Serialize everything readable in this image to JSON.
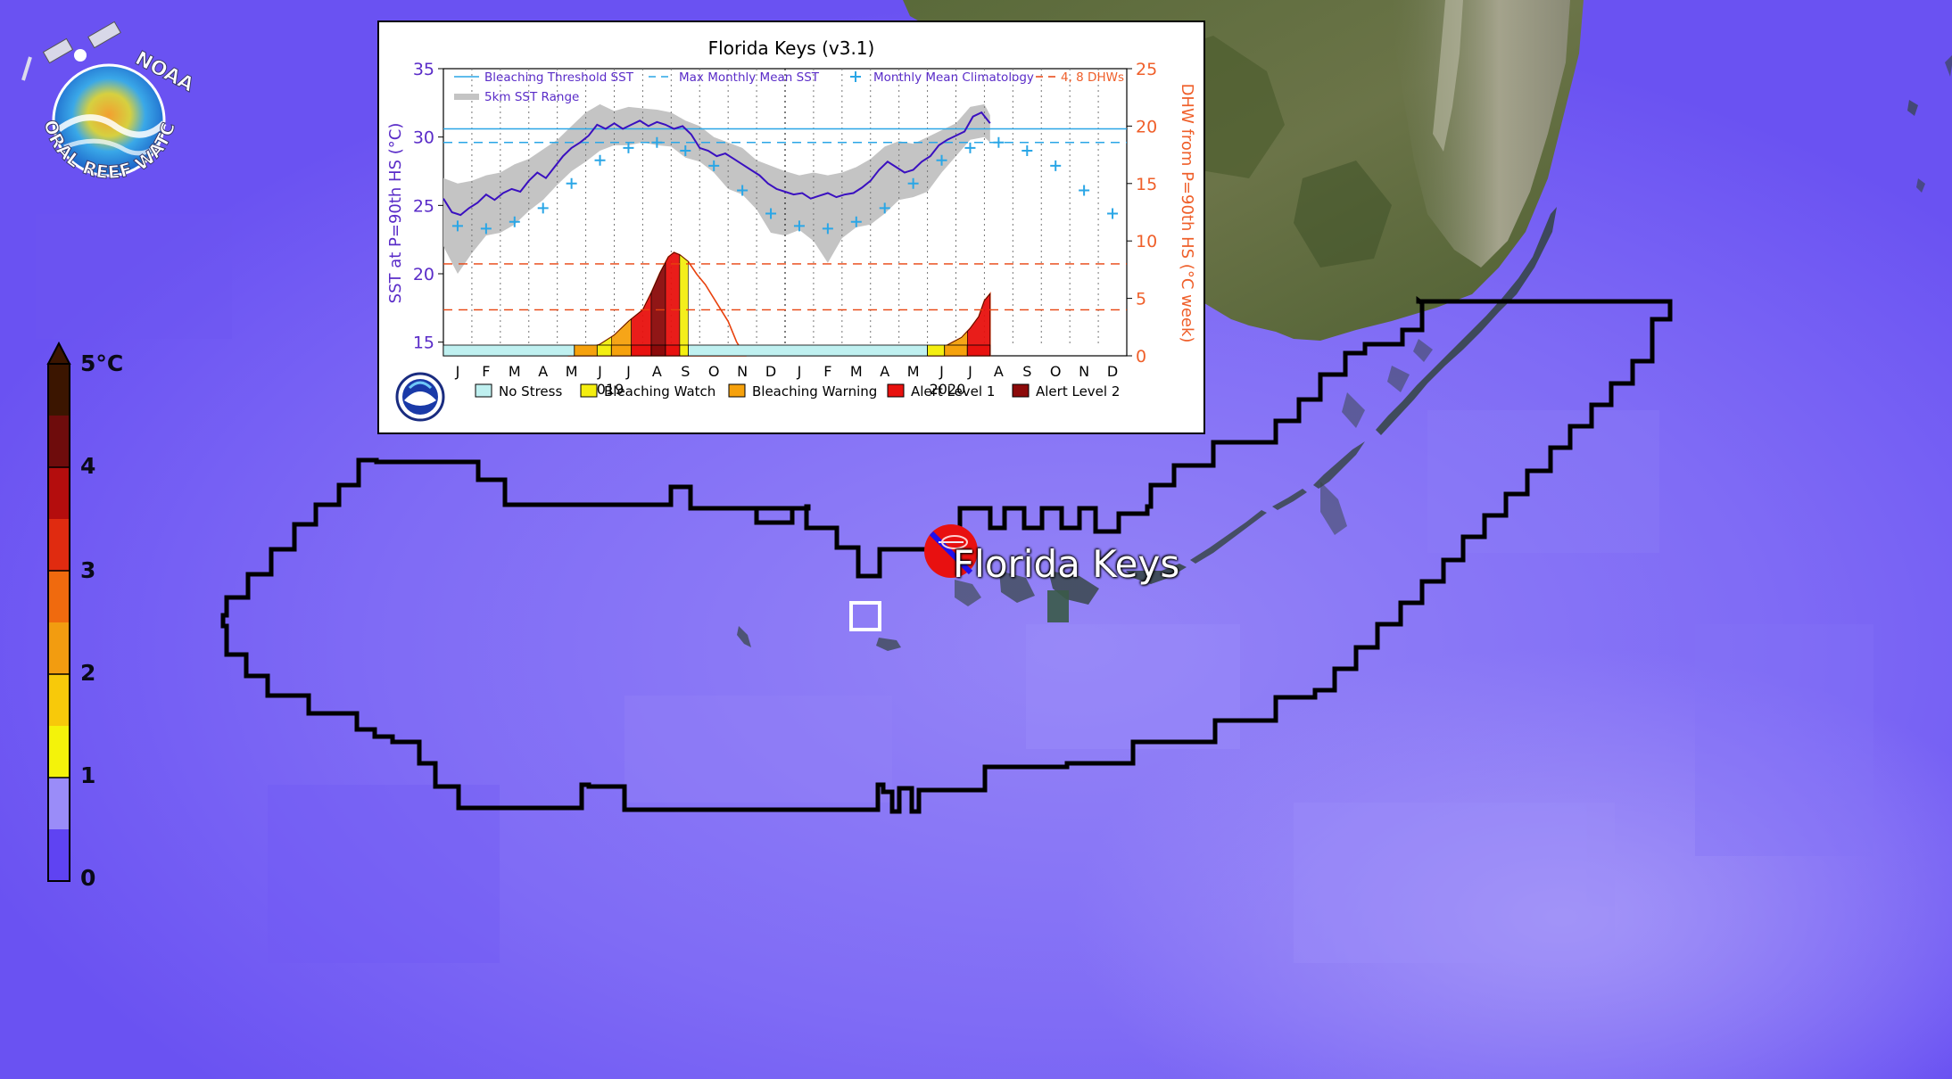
{
  "site": {
    "name": "Florida Keys"
  },
  "logo": {
    "top_text": "NOAA",
    "bottom_text": "CORAL REEF WATCH",
    "icon": "noaa-coral-reef-watch-logo-icon"
  },
  "colorbar": {
    "unit_label": "5°C",
    "ticks": [
      "4",
      "3",
      "2",
      "1",
      "0"
    ],
    "colors": [
      "#3b1500",
      "#6e0c0c",
      "#b40d0d",
      "#e02b10",
      "#f06a0e",
      "#f29c10",
      "#f7c90a",
      "#f4f30a",
      "#9a8cf8",
      "#5f43f2"
    ]
  },
  "map": {
    "ocean_color": "#7c68f5",
    "land_icon": "satellite-land-icon",
    "marker_icon": "station-marker-icon"
  },
  "chart_data": {
    "type": "line",
    "title": "Florida Keys (v3.1)",
    "ylabel": "SST at P=90th HS (°C)",
    "y2label": "DHW from P=90th HS (°C week)",
    "ylim": [
      14,
      35
    ],
    "y2lim": [
      0,
      25
    ],
    "yticks": [
      "35",
      "30",
      "25",
      "20",
      "15"
    ],
    "y2ticks": [
      "25",
      "20",
      "15",
      "10",
      "5",
      "0"
    ],
    "months": [
      "J",
      "F",
      "M",
      "A",
      "M",
      "J",
      "J",
      "A",
      "S",
      "O",
      "N",
      "D",
      "J",
      "F",
      "M",
      "A",
      "M",
      "J",
      "J",
      "A",
      "S",
      "O",
      "N",
      "D"
    ],
    "years": [
      "2019",
      "2020"
    ],
    "legend": {
      "line1": [
        "Bleaching Threshold SST",
        "Max Monthly Mean SST",
        "Monthly Mean Climatology",
        "4, 8 DHWs"
      ],
      "line2": [
        "5km SST Range"
      ]
    },
    "bleaching_threshold_sst": 30.6,
    "max_monthly_mean_sst": 29.6,
    "dhw_levels": [
      4,
      8
    ],
    "monthly_mean_climatology": {
      "x": [
        0.5,
        1.5,
        2.5,
        3.5,
        4.5,
        5.5,
        6.5,
        7.5,
        8.5,
        9.5,
        10.5,
        11.5,
        12.5,
        13.5,
        14.5,
        15.5,
        16.5,
        17.5,
        18.5,
        19.5,
        20.5,
        21.5,
        22.5,
        23.5
      ],
      "y": [
        23.5,
        23.3,
        23.8,
        24.8,
        26.6,
        28.3,
        29.2,
        29.6,
        29.0,
        27.9,
        26.1,
        24.4,
        23.5,
        23.3,
        23.8,
        24.8,
        26.6,
        28.3,
        29.2,
        29.6,
        29.0,
        27.9,
        26.1,
        24.4
      ]
    },
    "sst": {
      "x": [
        0.0,
        0.3,
        0.6,
        0.9,
        1.2,
        1.5,
        1.8,
        2.1,
        2.4,
        2.7,
        3.0,
        3.3,
        3.6,
        3.9,
        4.2,
        4.5,
        4.8,
        5.1,
        5.4,
        5.7,
        6.0,
        6.3,
        6.6,
        6.9,
        7.2,
        7.5,
        7.8,
        8.1,
        8.4,
        8.7,
        9.0,
        9.3,
        9.6,
        9.9,
        10.2,
        10.5,
        10.8,
        11.1,
        11.4,
        11.7,
        12.0,
        12.3,
        12.6,
        12.9,
        13.2,
        13.5,
        13.8,
        14.1,
        14.4,
        14.7,
        15.0,
        15.3,
        15.6,
        15.9,
        16.2,
        16.5,
        16.8,
        17.1,
        17.4,
        17.7,
        18.0,
        18.3,
        18.6,
        18.9,
        19.2
      ],
      "y": [
        25.5,
        24.5,
        24.3,
        24.8,
        25.2,
        25.8,
        25.4,
        25.9,
        26.2,
        26.0,
        26.8,
        27.4,
        27.0,
        27.8,
        28.6,
        29.2,
        29.6,
        30.1,
        30.9,
        30.6,
        31.0,
        30.6,
        30.9,
        31.2,
        30.8,
        31.1,
        30.9,
        30.6,
        30.8,
        30.2,
        29.2,
        29.0,
        28.6,
        28.8,
        28.4,
        28.0,
        27.6,
        27.2,
        26.6,
        26.2,
        26.0,
        25.8,
        25.9,
        25.5,
        25.7,
        25.9,
        25.6,
        25.8,
        25.9,
        26.3,
        26.8,
        27.6,
        28.2,
        27.8,
        27.4,
        27.6,
        28.2,
        28.6,
        29.4,
        29.8,
        30.1,
        30.4,
        31.5,
        31.8,
        31.0
      ]
    },
    "sst_range": {
      "x": [
        0.0,
        0.5,
        1.0,
        1.5,
        2.0,
        2.5,
        3.0,
        3.5,
        4.0,
        4.5,
        5.0,
        5.5,
        6.0,
        6.5,
        7.0,
        7.5,
        8.0,
        8.5,
        9.0,
        9.5,
        10.0,
        10.5,
        11.0,
        11.5,
        12.0,
        12.5,
        13.0,
        13.5,
        14.0,
        14.5,
        15.0,
        15.5,
        16.0,
        16.5,
        17.0,
        17.5,
        18.0,
        18.5,
        19.0,
        19.2
      ],
      "low": [
        22.0,
        20.0,
        21.5,
        22.8,
        23.0,
        23.6,
        24.6,
        25.4,
        26.5,
        27.5,
        28.2,
        29.0,
        29.4,
        29.4,
        29.6,
        29.4,
        29.3,
        28.5,
        28.2,
        27.4,
        26.2,
        25.8,
        24.7,
        23.0,
        22.8,
        23.2,
        22.4,
        20.8,
        22.6,
        23.4,
        23.6,
        24.4,
        25.4,
        25.6,
        26.0,
        27.4,
        28.6,
        29.8,
        30.0,
        29.6
      ],
      "high": [
        27.0,
        26.6,
        26.8,
        27.2,
        27.4,
        28.0,
        28.4,
        29.1,
        29.8,
        30.8,
        31.8,
        32.4,
        31.9,
        32.2,
        32.1,
        32.0,
        31.8,
        31.2,
        30.8,
        30.0,
        29.6,
        29.2,
        28.3,
        27.9,
        27.5,
        27.2,
        27.4,
        27.2,
        27.4,
        27.8,
        28.4,
        29.3,
        29.7,
        29.5,
        30.0,
        30.5,
        31.0,
        32.2,
        32.4,
        31.6
      ]
    },
    "dhw": {
      "x": [
        4.4,
        5.0,
        5.5,
        6.0,
        6.5,
        7.0,
        7.3,
        7.6,
        7.9,
        8.1,
        8.3,
        8.6,
        8.9,
        9.2,
        9.6,
        10.0,
        10.3,
        10.6,
        17.0,
        17.3,
        17.6,
        17.9,
        18.2,
        18.5,
        18.8,
        19.0,
        19.2
      ],
      "y": [
        0.2,
        0.6,
        1.0,
        1.8,
        3.0,
        4.0,
        5.5,
        7.2,
        8.6,
        9.0,
        8.8,
        8.2,
        7.1,
        6.2,
        4.6,
        3.0,
        1.2,
        0.0,
        0.0,
        0.3,
        0.8,
        1.2,
        1.6,
        2.4,
        3.4,
        4.8,
        5.4
      ]
    },
    "stress_bar": [
      {
        "from": 0.0,
        "to": 4.6,
        "level": "No Stress"
      },
      {
        "from": 4.6,
        "to": 5.4,
        "level": "Bleaching Warning"
      },
      {
        "from": 5.4,
        "to": 5.9,
        "level": "Bleaching Watch"
      },
      {
        "from": 5.9,
        "to": 6.6,
        "level": "Bleaching Warning"
      },
      {
        "from": 6.6,
        "to": 7.3,
        "level": "Alert Level 1"
      },
      {
        "from": 7.3,
        "to": 7.8,
        "level": "Alert Level 2"
      },
      {
        "from": 7.8,
        "to": 8.3,
        "level": "Alert Level 1"
      },
      {
        "from": 8.3,
        "to": 8.6,
        "level": "Bleaching Watch"
      },
      {
        "from": 8.6,
        "to": 17.0,
        "level": "No Stress"
      },
      {
        "from": 17.0,
        "to": 17.6,
        "level": "Bleaching Watch"
      },
      {
        "from": 17.6,
        "to": 18.4,
        "level": "Bleaching Warning"
      },
      {
        "from": 18.4,
        "to": 19.2,
        "level": "Alert Level 1"
      }
    ],
    "alert_legend": [
      {
        "label": "No Stress",
        "color": "#bff0f0"
      },
      {
        "label": "Bleaching Watch",
        "color": "#f4ee10"
      },
      {
        "label": "Bleaching Warning",
        "color": "#f6a10c"
      },
      {
        "label": "Alert Level 1",
        "color": "#e8110e"
      },
      {
        "label": "Alert Level 2",
        "color": "#8c0a0a"
      }
    ],
    "colors": {
      "sst": "#3a10c0",
      "threshold": "#2aa6e6",
      "mmm": "#2aa6e6",
      "climatology": "#2aa6e6",
      "dhw": "#e8420e",
      "range": "#c4c4c4",
      "left_axis_text": "#5a2cc8",
      "right_axis_text": "#ef5f2a"
    }
  }
}
